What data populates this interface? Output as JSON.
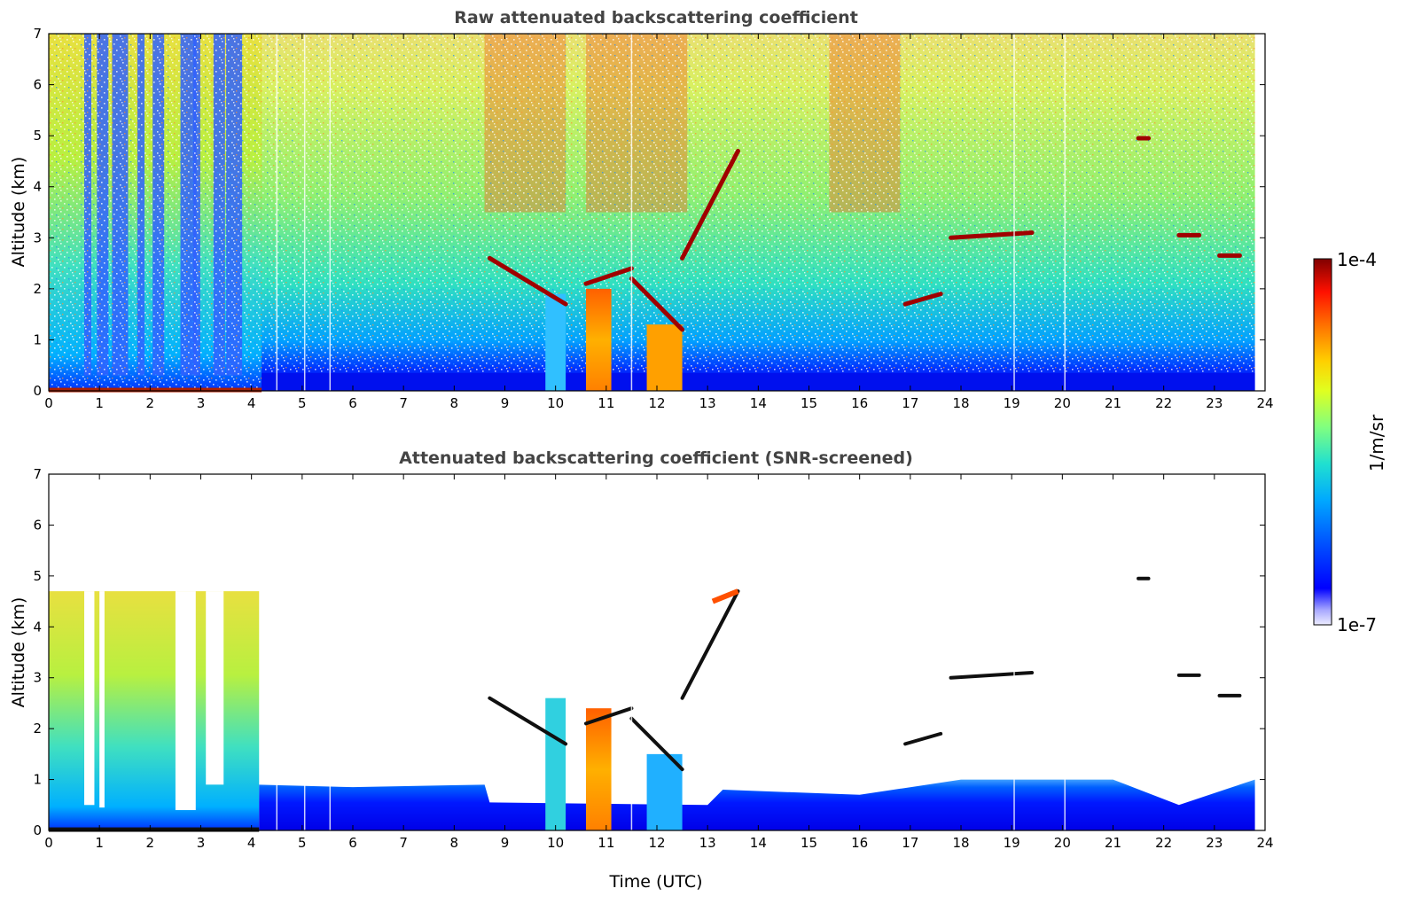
{
  "chart_data": [
    {
      "type": "heatmap",
      "title": "Raw attenuated backscattering coefficient",
      "xlabel": "",
      "ylabel": "Altitude (km)",
      "xlim": [
        0,
        24
      ],
      "ylim": [
        0,
        7
      ],
      "x_ticks": [
        "0",
        "1",
        "2",
        "3",
        "4",
        "5",
        "6",
        "7",
        "8",
        "9",
        "10",
        "11",
        "12",
        "13",
        "14",
        "15",
        "16",
        "17",
        "18",
        "19",
        "20",
        "21",
        "22",
        "23",
        "24"
      ],
      "y_ticks": [
        "0",
        "1",
        "2",
        "3",
        "4",
        "5",
        "6",
        "7"
      ],
      "data_end_time": 23.8,
      "grid": false,
      "colorbar": {
        "min": "1e-7",
        "max": "1e-4",
        "label": "1/m/sr",
        "scale": "log",
        "colormap": "jet"
      },
      "cloud_features": [
        {
          "t_start": 8.7,
          "t_end": 10.2,
          "alt_start": 2.6,
          "alt_end": 1.7
        },
        {
          "t_start": 10.6,
          "t_end": 11.5,
          "alt_start": 2.1,
          "alt_end": 2.4
        },
        {
          "t_start": 11.5,
          "t_end": 12.5,
          "alt_start": 2.2,
          "alt_end": 1.2
        },
        {
          "t_start": 12.5,
          "t_end": 13.6,
          "alt_start": 2.6,
          "alt_end": 4.7
        },
        {
          "t_start": 16.9,
          "t_end": 17.6,
          "alt_start": 1.7,
          "alt_end": 1.9
        },
        {
          "t_start": 17.8,
          "t_end": 19.4,
          "alt_start": 3.0,
          "alt_end": 3.1
        },
        {
          "t_start": 21.5,
          "t_end": 21.7,
          "alt_start": 4.95,
          "alt_end": 4.95
        },
        {
          "t_start": 22.3,
          "t_end": 22.7,
          "alt_start": 3.05,
          "alt_end": 3.05
        },
        {
          "t_start": 23.1,
          "t_end": 23.5,
          "alt_start": 2.65,
          "alt_end": 2.65
        }
      ]
    },
    {
      "type": "heatmap",
      "title": "Attenuated backscattering coefficient (SNR-screened)",
      "xlabel": "Time (UTC)",
      "ylabel": "Altitude (km)",
      "xlim": [
        0,
        24
      ],
      "ylim": [
        0,
        7
      ],
      "x_ticks": [
        "0",
        "1",
        "2",
        "3",
        "4",
        "5",
        "6",
        "7",
        "8",
        "9",
        "10",
        "11",
        "12",
        "13",
        "14",
        "15",
        "16",
        "17",
        "18",
        "19",
        "20",
        "21",
        "22",
        "23",
        "24"
      ],
      "y_ticks": [
        "0",
        "1",
        "2",
        "3",
        "4",
        "5",
        "6",
        "7"
      ],
      "data_end_time": 23.8,
      "grid": false,
      "colorbar": {
        "min": "1e-7",
        "max": "1e-4",
        "label": "1/m/sr",
        "scale": "log",
        "colormap": "jet"
      }
    }
  ],
  "colorbar": {
    "max_label": "1e-4",
    "min_label": "1e-7",
    "unit_label": "1/m/sr"
  }
}
